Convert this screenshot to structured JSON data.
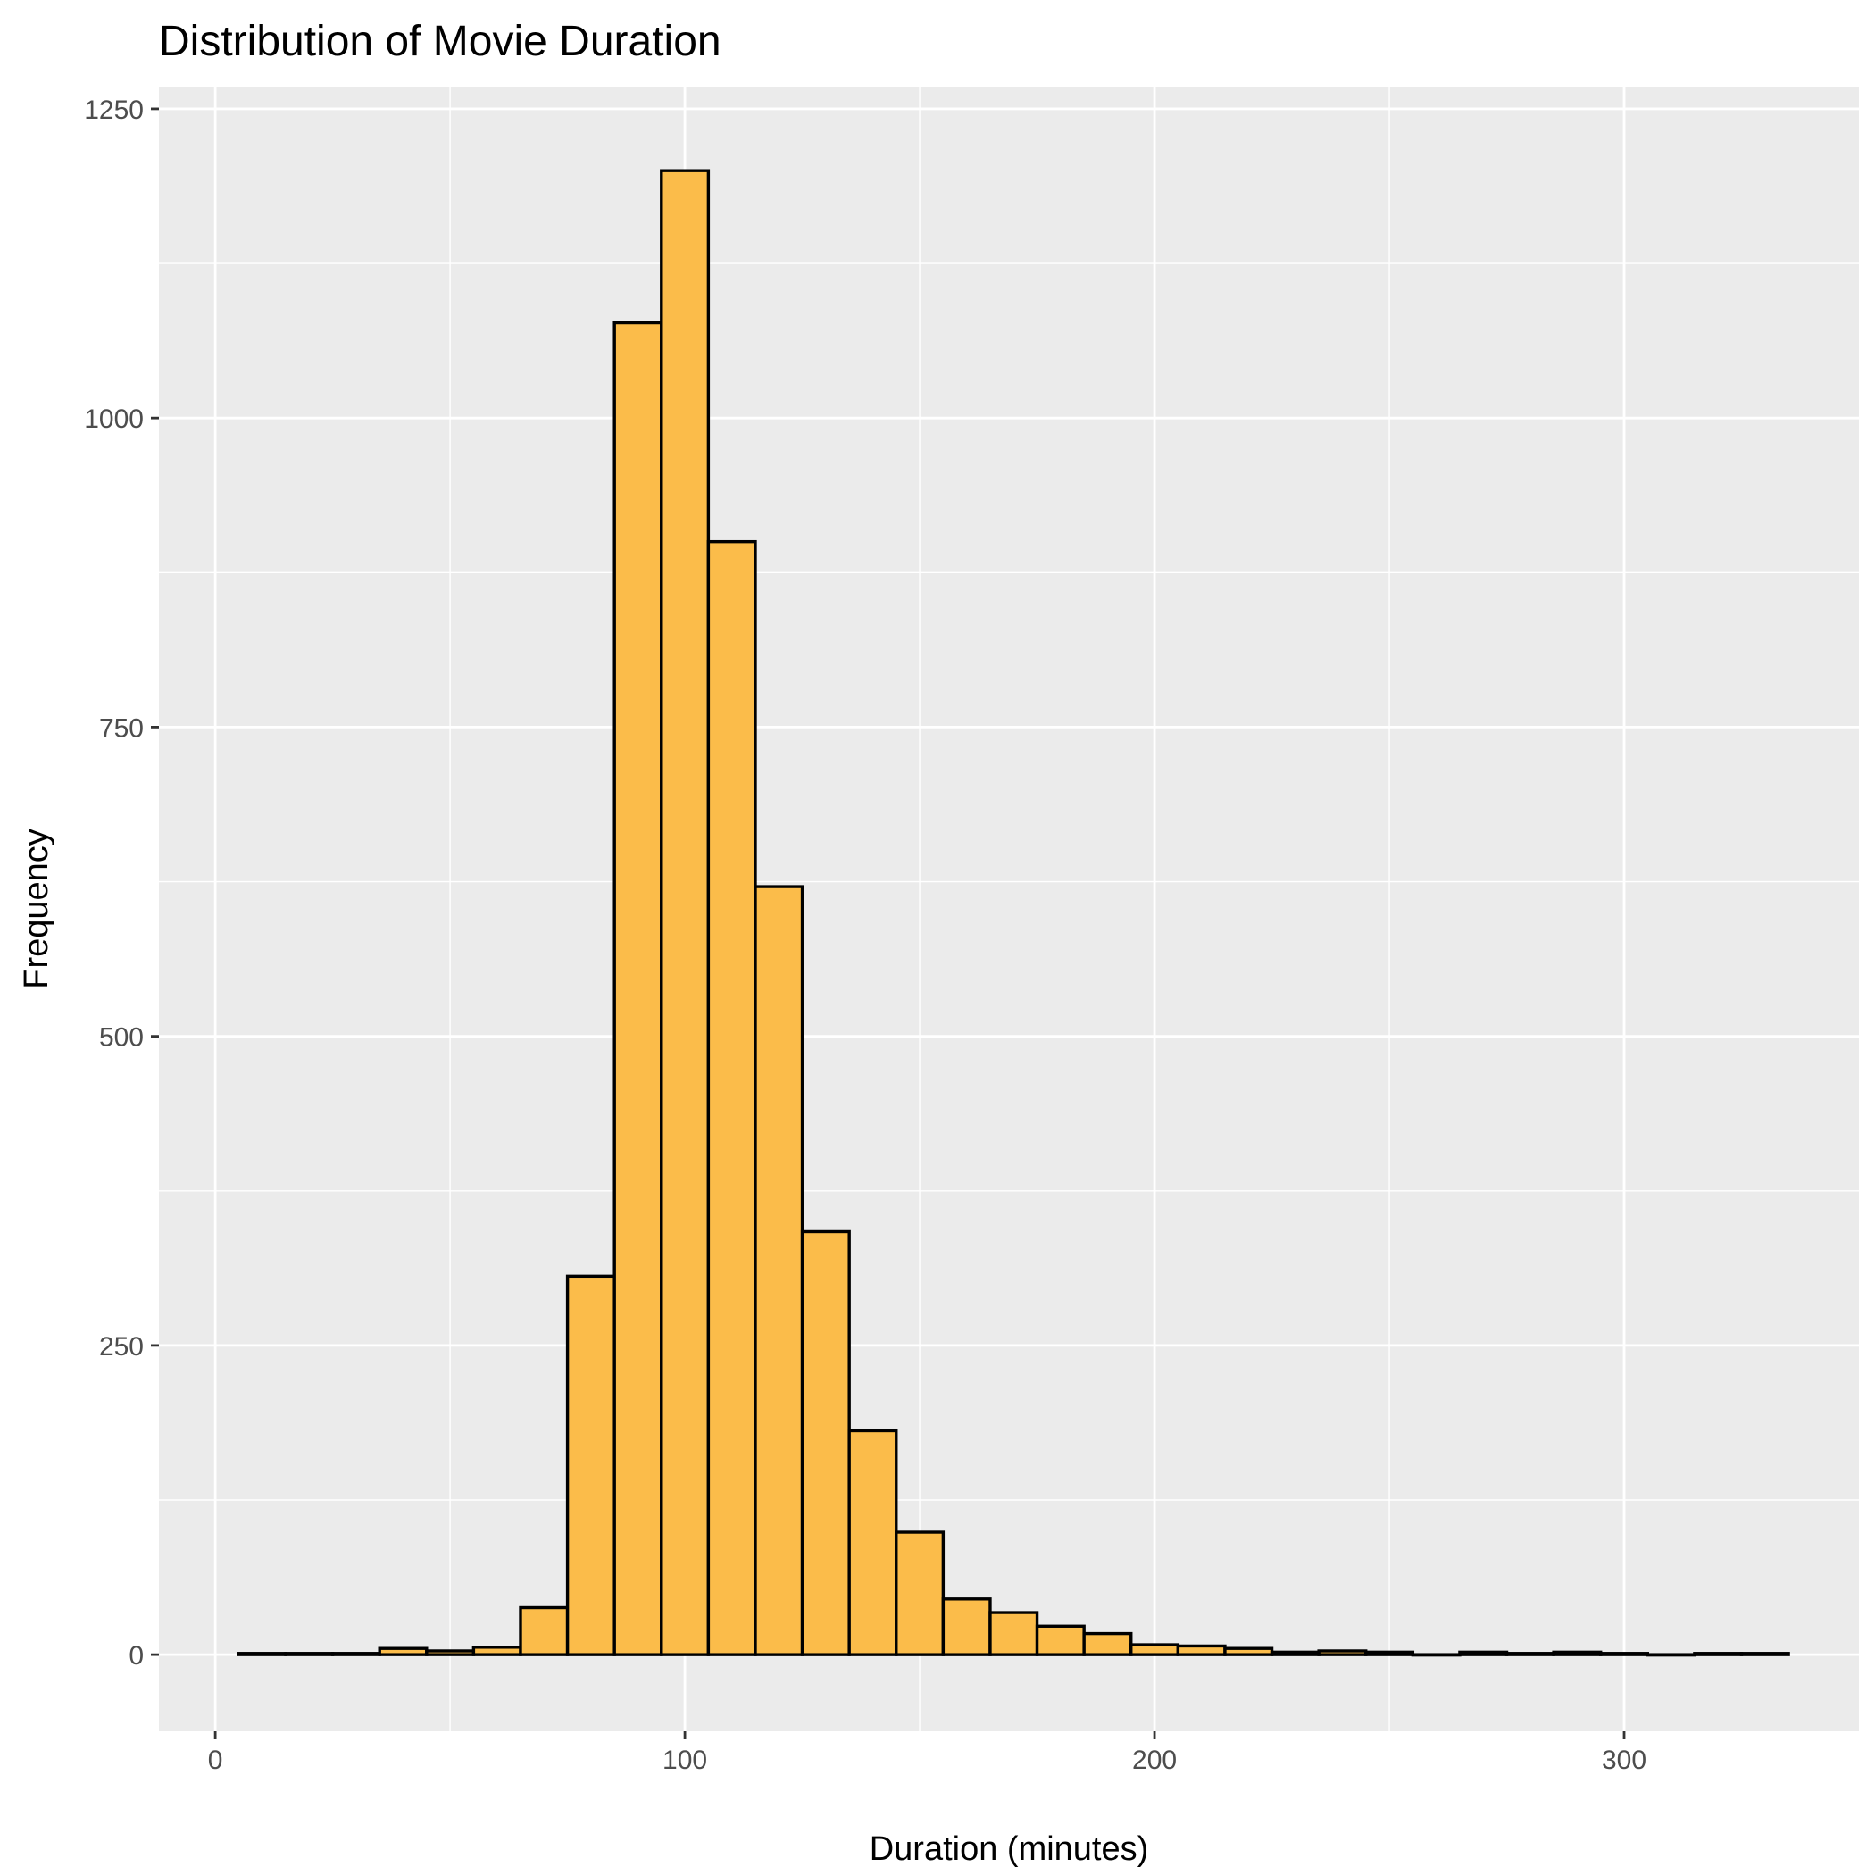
{
  "chart_data": {
    "type": "bar",
    "title": "Distribution of Movie Duration",
    "xlabel": "Duration (minutes)",
    "ylabel": "Frequency",
    "xlim": [
      -12,
      350
    ],
    "ylim": [
      -62,
      1268
    ],
    "x_ticks": [
      0,
      100,
      200,
      300
    ],
    "x_tick_labels": [
      "0",
      "100",
      "200",
      "300"
    ],
    "y_ticks": [
      0,
      250,
      500,
      750,
      1000,
      1250
    ],
    "y_tick_labels": [
      "0",
      "250",
      "500",
      "750",
      "1000",
      "1250"
    ],
    "grid": true,
    "legend": "none",
    "bin_width": 10,
    "bin_centers": [
      10,
      20,
      30,
      40,
      50,
      60,
      70,
      80,
      90,
      100,
      110,
      120,
      130,
      140,
      150,
      160,
      170,
      180,
      190,
      200,
      210,
      220,
      230,
      240,
      250,
      260,
      270,
      280,
      290,
      300,
      310,
      320,
      330
    ],
    "values": [
      1,
      1,
      1,
      5,
      3,
      6,
      38,
      306,
      1077,
      1200,
      900,
      621,
      342,
      181,
      99,
      45,
      34,
      23,
      17,
      8,
      7,
      5,
      2,
      3,
      2,
      0,
      2,
      1,
      2,
      1,
      0,
      1,
      1
    ],
    "colors": {
      "fill": "#fbbc4a",
      "outline": "#000000",
      "panel": "#ebebeb",
      "grid": "#ffffff"
    }
  }
}
